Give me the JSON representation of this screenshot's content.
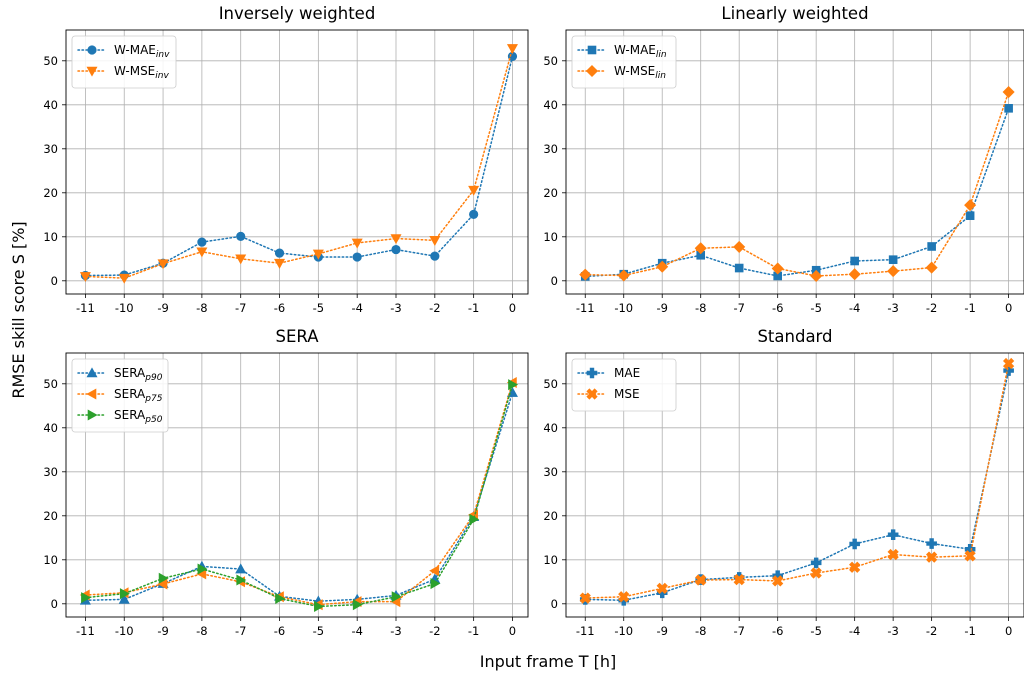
{
  "figure": {
    "xlabel": "Input frame T [h]",
    "ylabel": "RMSE skill score S [%]"
  },
  "colors": {
    "blue": "#1f77b4",
    "orange": "#ff7f0e",
    "green": "#2ca02c"
  },
  "chart_data": [
    {
      "type": "line",
      "title": "Inversely weighted",
      "x": [
        -11,
        -10,
        -9,
        -8,
        -7,
        -6,
        -5,
        -4,
        -3,
        -2,
        -1,
        0
      ],
      "xticks": [
        "-11",
        "-10",
        "-9",
        "-8",
        "-7",
        "-6",
        "-5",
        "-4",
        "-3",
        "-2",
        "-1",
        "0"
      ],
      "ylim": [
        -3,
        57
      ],
      "yticks": [
        0,
        10,
        20,
        30,
        40,
        50
      ],
      "grid": true,
      "legend": "upper left",
      "series": [
        {
          "name": "W-MAE",
          "subscript": "inv",
          "marker": "circle",
          "color": "#1f77b4",
          "values": [
            1.2,
            1.3,
            4.0,
            8.8,
            10.1,
            6.3,
            5.4,
            5.4,
            7.1,
            5.6,
            15.1,
            51.0
          ]
        },
        {
          "name": "W-MSE",
          "subscript": "inv",
          "marker": "triangle-down",
          "color": "#ff7f0e",
          "values": [
            1.0,
            0.6,
            3.9,
            6.6,
            5.0,
            4.0,
            6.1,
            8.6,
            9.6,
            9.2,
            20.6,
            52.8
          ]
        }
      ]
    },
    {
      "type": "line",
      "title": "Linearly weighted",
      "x": [
        -11,
        -10,
        -9,
        -8,
        -7,
        -6,
        -5,
        -4,
        -3,
        -2,
        -1,
        0
      ],
      "xticks": [
        "-11",
        "-10",
        "-9",
        "-8",
        "-7",
        "-6",
        "-5",
        "-4",
        "-3",
        "-2",
        "-1",
        "0"
      ],
      "ylim": [
        -3,
        57
      ],
      "yticks": [
        0,
        10,
        20,
        30,
        40,
        50
      ],
      "grid": true,
      "legend": "upper left",
      "series": [
        {
          "name": "W-MAE",
          "subscript": "lin",
          "marker": "square",
          "color": "#1f77b4",
          "values": [
            1.0,
            1.5,
            4.0,
            5.8,
            2.9,
            1.1,
            2.4,
            4.5,
            4.8,
            7.8,
            14.8,
            39.2
          ]
        },
        {
          "name": "W-MSE",
          "subscript": "lin",
          "marker": "diamond",
          "color": "#ff7f0e",
          "values": [
            1.4,
            1.2,
            3.2,
            7.4,
            7.7,
            2.8,
            1.1,
            1.5,
            2.2,
            3.0,
            17.2,
            42.9
          ]
        }
      ]
    },
    {
      "type": "line",
      "title": "SERA",
      "x": [
        -11,
        -10,
        -9,
        -8,
        -7,
        -6,
        -5,
        -4,
        -3,
        -2,
        -1,
        0
      ],
      "xticks": [
        "-11",
        "-10",
        "-9",
        "-8",
        "-7",
        "-6",
        "-5",
        "-4",
        "-3",
        "-2",
        "-1",
        "0"
      ],
      "ylim": [
        -3,
        57
      ],
      "yticks": [
        0,
        10,
        20,
        30,
        40,
        50
      ],
      "grid": true,
      "legend": "upper left",
      "series": [
        {
          "name": "SERA",
          "subscript": "p90",
          "marker": "triangle-up",
          "color": "#1f77b4",
          "values": [
            0.8,
            1.0,
            4.6,
            8.5,
            7.9,
            1.7,
            0.6,
            1.0,
            1.9,
            5.6,
            19.8,
            48.0
          ]
        },
        {
          "name": "SERA",
          "subscript": "p75",
          "marker": "triangle-left",
          "color": "#ff7f0e",
          "values": [
            2.0,
            2.5,
            4.5,
            6.8,
            5.0,
            1.6,
            -0.2,
            0.5,
            0.5,
            7.5,
            20.2,
            50.3
          ]
        },
        {
          "name": "SERA",
          "subscript": "p50",
          "marker": "triangle-right",
          "color": "#2ca02c",
          "values": [
            1.4,
            2.3,
            5.8,
            7.9,
            5.4,
            1.2,
            -0.6,
            -0.2,
            1.6,
            4.6,
            19.2,
            49.8
          ]
        }
      ]
    },
    {
      "type": "line",
      "title": "Standard",
      "x": [
        -11,
        -10,
        -9,
        -8,
        -7,
        -6,
        -5,
        -4,
        -3,
        -2,
        -1,
        0
      ],
      "xticks": [
        "-11",
        "-10",
        "-9",
        "-8",
        "-7",
        "-6",
        "-5",
        "-4",
        "-3",
        "-2",
        "-1",
        "0"
      ],
      "ylim": [
        -3,
        57
      ],
      "yticks": [
        0,
        10,
        20,
        30,
        40,
        50
      ],
      "grid": true,
      "legend": "upper left",
      "series": [
        {
          "name": "MAE",
          "marker": "plus",
          "color": "#1f77b4",
          "values": [
            1.0,
            0.8,
            2.5,
            5.5,
            6.0,
            6.4,
            9.3,
            13.6,
            15.7,
            13.7,
            12.4,
            53.0
          ]
        },
        {
          "name": "MSE",
          "marker": "x",
          "color": "#ff7f0e",
          "values": [
            1.3,
            1.6,
            3.5,
            5.4,
            5.5,
            5.2,
            7.0,
            8.3,
            11.2,
            10.6,
            10.9,
            54.6
          ]
        }
      ]
    }
  ]
}
